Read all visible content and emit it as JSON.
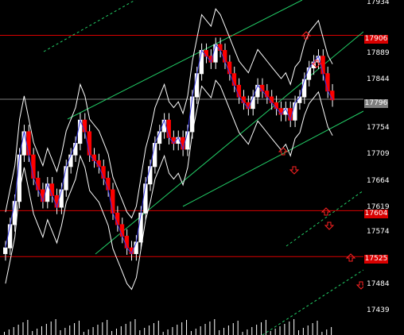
{
  "window": {
    "title": ""
  },
  "chart_data": {
    "type": "candlestick",
    "y_axis": {
      "ticks": [
        "17934",
        "17889",
        "17844",
        "17796",
        "17754",
        "17709",
        "17664",
        "17619",
        "17604",
        "17574",
        "17525",
        "17484",
        "17439"
      ],
      "range": [
        17420,
        17960
      ]
    },
    "levels": [
      {
        "price": 17906,
        "label": "17906",
        "color": "#d90000"
      },
      {
        "price": 17796,
        "label": "17796",
        "color": "#7f7f7f"
      },
      {
        "price": 17604,
        "label": "17604",
        "color": "#d90000"
      },
      {
        "price": 17525,
        "label": "17525",
        "color": "#d90000"
      }
    ],
    "series_close": [
      17540,
      17580,
      17620,
      17700,
      17740,
      17700,
      17660,
      17640,
      17620,
      17650,
      17630,
      17610,
      17640,
      17680,
      17700,
      17720,
      17760,
      17740,
      17700,
      17690,
      17680,
      17660,
      17640,
      17600,
      17580,
      17560,
      17540,
      17530,
      17550,
      17600,
      17650,
      17680,
      17720,
      17740,
      17760,
      17730,
      17720,
      17730,
      17710,
      17740,
      17800,
      17840,
      17880,
      17870,
      17860,
      17890,
      17880,
      17860,
      17840,
      17820,
      17800,
      17790,
      17780,
      17800,
      17820,
      17810,
      17800,
      17790,
      17780,
      17770,
      17780,
      17760,
      17790,
      17800,
      17830,
      17850,
      17860,
      17870,
      17840,
      17810,
      17795
    ],
    "colors": {
      "up": "#ffffff",
      "down": "#ff0000",
      "bollinger": "#ffffff",
      "ma": "#3333dd",
      "channel": "#22cc66"
    }
  }
}
